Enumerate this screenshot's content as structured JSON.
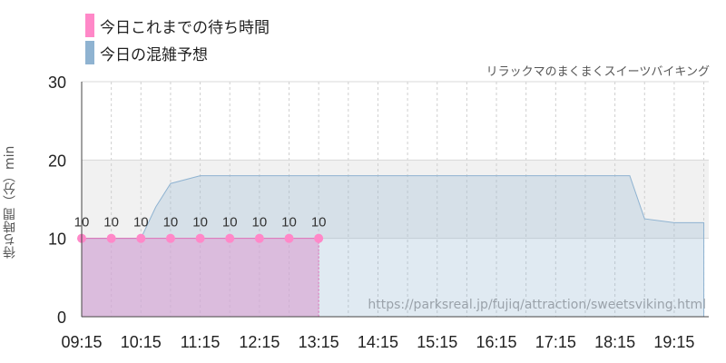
{
  "chart_data": {
    "type": "area",
    "legend": [
      {
        "label": "今日これまでの待ち時間",
        "color": "#ff88c8"
      },
      {
        "label": "今日の混雑予想",
        "color": "#8fb3d1"
      }
    ],
    "attraction_name": "リラックマのまくまくスイーツバイキング",
    "ylabel": "待ち時間（分）min",
    "ylim": [
      0,
      30
    ],
    "yticks": [
      0,
      10,
      20,
      30
    ],
    "x_ticks": [
      "09:15",
      "10:15",
      "11:15",
      "12:15",
      "13:15",
      "14:15",
      "15:15",
      "16:15",
      "17:15",
      "18:15",
      "19:15"
    ],
    "series": [
      {
        "name": "今日これまでの待ち時間",
        "color": "#ff88c8",
        "x": [
          "09:15",
          "09:45",
          "10:15",
          "10:45",
          "11:15",
          "11:45",
          "12:15",
          "12:45",
          "13:15"
        ],
        "values": [
          10,
          10,
          10,
          10,
          10,
          10,
          10,
          10,
          10
        ],
        "data_labels": [
          "10",
          "10",
          "10",
          "10",
          "10",
          "10",
          "10",
          "10",
          "10"
        ]
      },
      {
        "name": "今日の混雑予想",
        "color": "#8fb3d1",
        "x": [
          "09:15",
          "09:45",
          "10:15",
          "10:30",
          "10:45",
          "11:15",
          "11:45",
          "12:15",
          "13:15",
          "14:15",
          "15:15",
          "16:15",
          "17:15",
          "18:15",
          "18:30",
          "18:45",
          "19:15",
          "19:45"
        ],
        "values": [
          10,
          10,
          10,
          14,
          17,
          18,
          18,
          18,
          18,
          18,
          18,
          18,
          18,
          18,
          18,
          12.5,
          12,
          12
        ]
      }
    ],
    "grid": true,
    "watermark": "https://parksreal.jp/fujiq/attraction/sweetsviking.html"
  }
}
